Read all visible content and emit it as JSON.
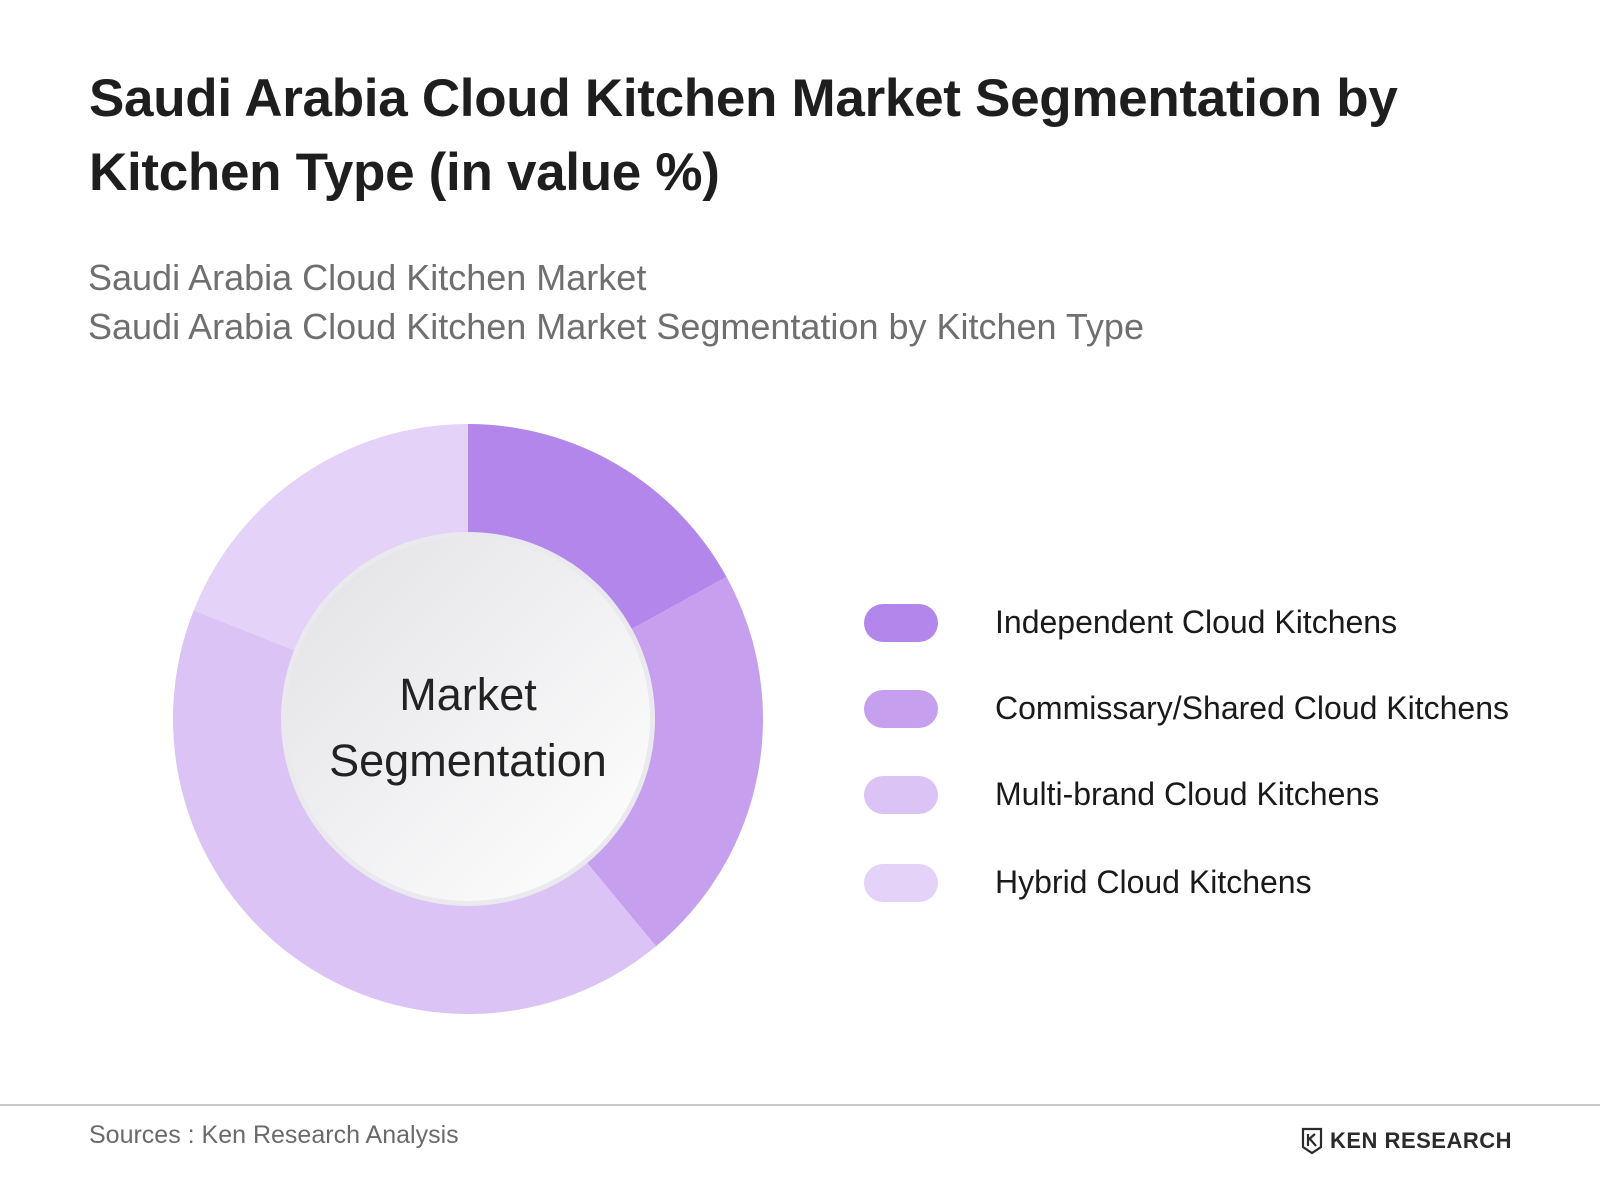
{
  "header": {
    "title": "Saudi Arabia Cloud Kitchen Market Segmentation by Kitchen Type (in value %)",
    "subtitle_line1": "Saudi Arabia Cloud Kitchen Market",
    "subtitle_line2": "Saudi Arabia Cloud Kitchen Market Segmentation by Kitchen Type"
  },
  "chart_data": {
    "type": "pie",
    "variant": "donut",
    "center_label_line1": "Market",
    "center_label_line2": "Segmentation",
    "legend_position": "right",
    "series": [
      {
        "name": "Independent Cloud Kitchens",
        "value": 17,
        "color": "#b386ec"
      },
      {
        "name": "Commissary/Shared Cloud Kitchens",
        "value": 22,
        "color": "#c6a0ef"
      },
      {
        "name": "Multi-brand Cloud Kitchens",
        "value": 42,
        "color": "#dbc3f6"
      },
      {
        "name": "Hybrid Cloud Kitchens",
        "value": 19,
        "color": "#e4d2f8"
      }
    ]
  },
  "footer": {
    "source": "Sources : Ken Research Analysis",
    "brand": "KEN RESEARCH",
    "brand_icon": "ken-research-logo-icon"
  }
}
